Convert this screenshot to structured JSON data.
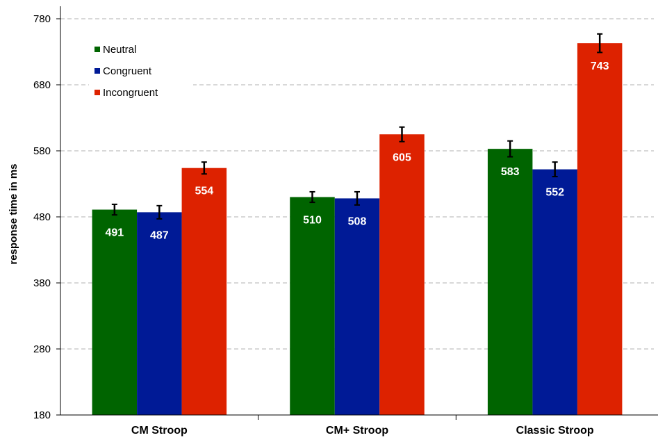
{
  "chart_data": {
    "type": "bar",
    "title": "",
    "xlabel": "",
    "ylabel": "response time in ms",
    "ylim": [
      180,
      780
    ],
    "yticks": [
      180,
      280,
      380,
      480,
      580,
      680,
      780
    ],
    "grid": true,
    "legend_position": "top-left",
    "categories": [
      "CM Stroop",
      "CM+ Stroop",
      "Classic Stroop"
    ],
    "series": [
      {
        "name": "Neutral",
        "color": "#006400",
        "values": [
          491,
          510,
          583
        ],
        "errors": [
          8,
          8,
          12
        ]
      },
      {
        "name": "Congruent",
        "color": "#001a96",
        "values": [
          487,
          508,
          552
        ],
        "errors": [
          10,
          10,
          11
        ]
      },
      {
        "name": "Incongruent",
        "color": "#dd2200",
        "values": [
          554,
          605,
          743
        ],
        "errors": [
          9,
          11,
          14
        ]
      }
    ]
  }
}
